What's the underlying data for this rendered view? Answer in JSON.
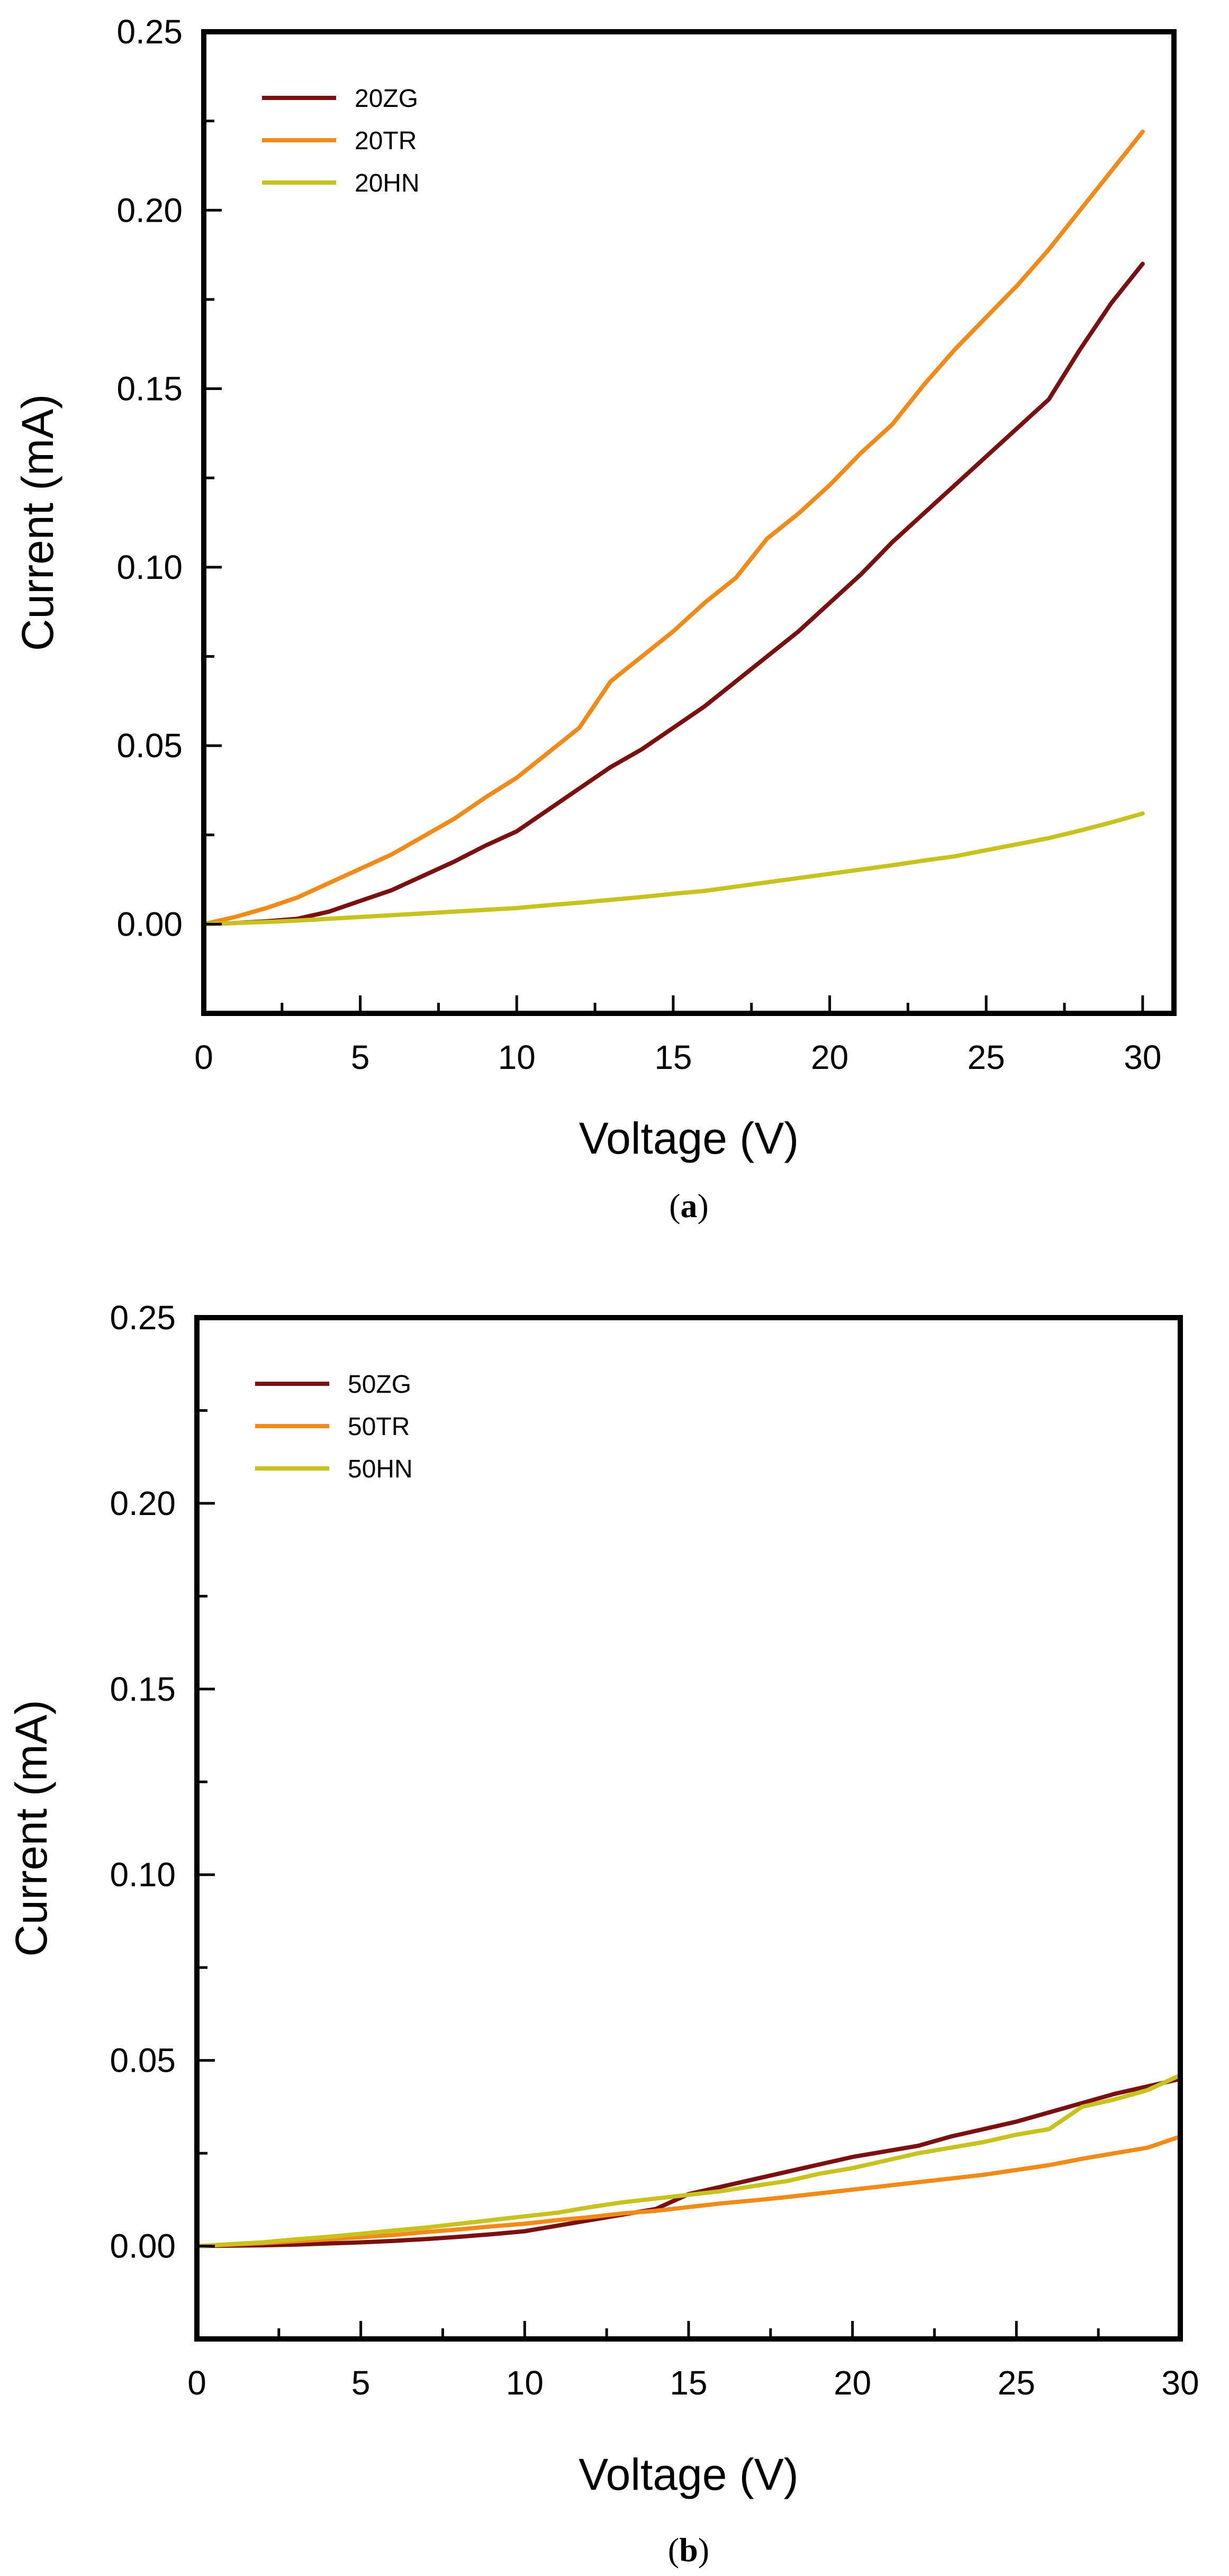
{
  "chart_data": [
    {
      "type": "line",
      "panel": "a",
      "caption_open": "(",
      "caption_letter": "a",
      "caption_close": ")",
      "title": "",
      "xlabel": "Voltage (V)",
      "ylabel": "Current (mA)",
      "xlim": [
        0,
        31
      ],
      "ylim": [
        -0.025,
        0.25
      ],
      "xticks": [
        0,
        5,
        10,
        15,
        20,
        25,
        30
      ],
      "xtick_labels": [
        "0",
        "5",
        "10",
        "15",
        "20",
        "25",
        "30"
      ],
      "yticks": [
        0.0,
        0.05,
        0.1,
        0.15,
        0.2,
        0.25
      ],
      "ytick_labels": [
        "0.00",
        "0.05",
        "0.10",
        "0.15",
        "0.20",
        "0.25"
      ],
      "legend_position": "top-left",
      "grid": false,
      "series": [
        {
          "name": "20ZG",
          "color": "#7a1010",
          "x": [
            0,
            1,
            2,
            3,
            4,
            5,
            6,
            7,
            8,
            9,
            10,
            11,
            12,
            13,
            14,
            15,
            16,
            17,
            18,
            19,
            20,
            21,
            22,
            23,
            24,
            25,
            26,
            27,
            28,
            29,
            30
          ],
          "values": [
            0,
            0.0003,
            0.0008,
            0.0015,
            0.0035,
            0.0065,
            0.0095,
            0.0135,
            0.0175,
            0.022,
            0.026,
            0.032,
            0.038,
            0.044,
            0.049,
            0.055,
            0.061,
            0.068,
            0.075,
            0.082,
            0.09,
            0.098,
            0.107,
            0.115,
            0.123,
            0.131,
            0.139,
            0.147,
            0.161,
            0.174,
            0.185
          ]
        },
        {
          "name": "20TR",
          "color": "#f08a18",
          "x": [
            0,
            1,
            2,
            3,
            4,
            5,
            6,
            7,
            8,
            9,
            10,
            11,
            12,
            13,
            14,
            15,
            16,
            17,
            18,
            19,
            20,
            21,
            22,
            23,
            24,
            25,
            26,
            27,
            28,
            29,
            30
          ],
          "values": [
            0,
            0.002,
            0.0045,
            0.0075,
            0.0115,
            0.0155,
            0.0195,
            0.0245,
            0.0295,
            0.0355,
            0.041,
            0.048,
            0.055,
            0.068,
            0.075,
            0.082,
            0.09,
            0.097,
            0.108,
            0.115,
            0.123,
            0.132,
            0.14,
            0.151,
            0.161,
            0.17,
            0.179,
            0.189,
            0.2,
            0.211,
            0.222
          ]
        },
        {
          "name": "20HN",
          "color": "#c7c21e",
          "x": [
            0,
            1,
            2,
            3,
            4,
            5,
            6,
            7,
            8,
            9,
            10,
            11,
            12,
            13,
            14,
            15,
            16,
            17,
            18,
            19,
            20,
            21,
            22,
            23,
            24,
            25,
            26,
            27,
            28,
            29,
            30
          ],
          "values": [
            0,
            0.0003,
            0.0006,
            0.001,
            0.0015,
            0.002,
            0.0025,
            0.003,
            0.0035,
            0.004,
            0.0045,
            0.0053,
            0.006,
            0.0068,
            0.0076,
            0.0085,
            0.0093,
            0.0105,
            0.0117,
            0.0129,
            0.0141,
            0.0153,
            0.0165,
            0.0178,
            0.019,
            0.0207,
            0.0224,
            0.0241,
            0.0262,
            0.0285,
            0.031
          ]
        }
      ]
    },
    {
      "type": "line",
      "panel": "b",
      "caption_open": "(",
      "caption_letter": "b",
      "caption_close": ")",
      "title": "",
      "xlabel": "Voltage (V)",
      "ylabel": "Current (mA)",
      "xlim": [
        0,
        30
      ],
      "ylim": [
        -0.025,
        0.25
      ],
      "xticks": [
        0,
        5,
        10,
        15,
        20,
        25,
        30
      ],
      "xtick_labels": [
        "0",
        "5",
        "10",
        "15",
        "20",
        "25",
        "30"
      ],
      "yticks": [
        0.0,
        0.05,
        0.1,
        0.15,
        0.2,
        0.25
      ],
      "ytick_labels": [
        "0.00",
        "0.05",
        "0.10",
        "0.15",
        "0.20",
        "0.25"
      ],
      "legend_position": "top-left",
      "grid": false,
      "series": [
        {
          "name": "50ZG",
          "color": "#7a1010",
          "x": [
            0,
            1,
            2,
            3,
            4,
            5,
            6,
            7,
            8,
            9,
            10,
            11,
            12,
            13,
            14,
            15,
            16,
            17,
            18,
            19,
            20,
            21,
            22,
            23,
            24,
            25,
            26,
            27,
            28,
            29,
            30
          ],
          "values": [
            0,
            0.0001,
            0.0002,
            0.0004,
            0.0007,
            0.001,
            0.0014,
            0.0019,
            0.0025,
            0.0032,
            0.004,
            0.0055,
            0.007,
            0.0085,
            0.01,
            0.014,
            0.016,
            0.018,
            0.02,
            0.022,
            0.024,
            0.0255,
            0.027,
            0.0295,
            0.0315,
            0.0335,
            0.036,
            0.0385,
            0.041,
            0.043,
            0.045
          ]
        },
        {
          "name": "50TR",
          "color": "#f08a18",
          "x": [
            0,
            1,
            2,
            3,
            4,
            5,
            6,
            7,
            8,
            9,
            10,
            11,
            12,
            13,
            14,
            15,
            16,
            17,
            18,
            19,
            20,
            21,
            22,
            23,
            24,
            25,
            26,
            27,
            28,
            29,
            30
          ],
          "values": [
            0,
            0.0004,
            0.0008,
            0.0013,
            0.0018,
            0.0024,
            0.003,
            0.0038,
            0.0045,
            0.0053,
            0.006,
            0.007,
            0.0078,
            0.0088,
            0.0095,
            0.0105,
            0.0115,
            0.0123,
            0.0132,
            0.0142,
            0.0152,
            0.0162,
            0.0172,
            0.0182,
            0.0192,
            0.0205,
            0.0218,
            0.0235,
            0.025,
            0.0265,
            0.0295
          ]
        },
        {
          "name": "50HN",
          "color": "#c7c21e",
          "x": [
            0,
            1,
            2,
            3,
            4,
            5,
            6,
            7,
            8,
            9,
            10,
            11,
            12,
            13,
            14,
            15,
            16,
            17,
            18,
            19,
            20,
            21,
            22,
            23,
            24,
            25,
            26,
            27,
            28,
            29,
            30
          ],
          "values": [
            0,
            0.0005,
            0.001,
            0.0018,
            0.0025,
            0.0033,
            0.0042,
            0.005,
            0.006,
            0.007,
            0.008,
            0.009,
            0.0105,
            0.0118,
            0.0128,
            0.0138,
            0.0148,
            0.0162,
            0.0175,
            0.0195,
            0.021,
            0.023,
            0.025,
            0.0265,
            0.028,
            0.03,
            0.0315,
            0.0375,
            0.0395,
            0.042,
            0.046
          ]
        }
      ]
    }
  ]
}
